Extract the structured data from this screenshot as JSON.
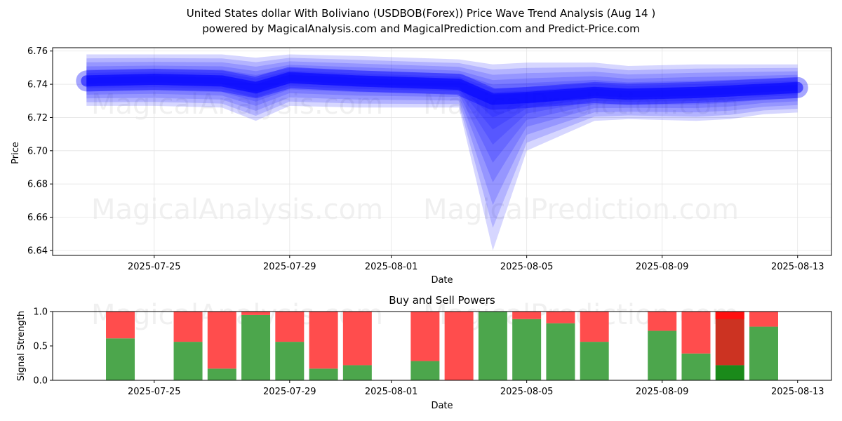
{
  "title_line1": "United States dollar With Boliviano (USDBOB(Forex)) Price Wave Trend Analysis (Aug 14 )",
  "title_line2": "powered by MagicalAnalysis.com and MagicalPrediction.com and Predict-Price.com",
  "watermarks": [
    "MagicalAnalysis.com",
    "MagicalPrediction.com"
  ],
  "colors": {
    "wave": "#0000ff",
    "buy": "#4ca64c",
    "sell": "#ff4d4d",
    "buy_strong": "#1a8a1a",
    "sell_strong": "#cc3322",
    "sell_top": "#ff1111"
  },
  "chart_data": [
    {
      "type": "area",
      "title": "",
      "xlabel": "Date",
      "ylabel": "Price",
      "ylim": [
        6.637,
        6.762
      ],
      "xlim": [
        "2025-07-22",
        "2025-08-14"
      ],
      "grid": true,
      "yticks": [
        6.64,
        6.66,
        6.68,
        6.7,
        6.72,
        6.74,
        6.76
      ],
      "ytick_labels": [
        "6.64",
        "6.66",
        "6.68",
        "6.70",
        "6.72",
        "6.74",
        "6.76"
      ],
      "xticks": [
        "2025-07-25",
        "2025-07-29",
        "2025-08-01",
        "2025-08-05",
        "2025-08-09",
        "2025-08-13"
      ],
      "series": [
        {
          "name": "wave center",
          "x": [
            "2025-07-23",
            "2025-07-25",
            "2025-07-27",
            "2025-07-28",
            "2025-07-29",
            "2025-07-31",
            "2025-08-03",
            "2025-08-04",
            "2025-08-05",
            "2025-08-07",
            "2025-08-08",
            "2025-08-10",
            "2025-08-11",
            "2025-08-12",
            "2025-08-13"
          ],
          "values": [
            6.742,
            6.743,
            6.742,
            6.738,
            6.744,
            6.742,
            6.74,
            6.731,
            6.732,
            6.735,
            6.734,
            6.735,
            6.736,
            6.737,
            6.738
          ]
        },
        {
          "name": "wave upper",
          "x": [
            "2025-07-23",
            "2025-07-25",
            "2025-07-27",
            "2025-07-28",
            "2025-07-29",
            "2025-07-31",
            "2025-08-03",
            "2025-08-04",
            "2025-08-05",
            "2025-08-07",
            "2025-08-08",
            "2025-08-10",
            "2025-08-11",
            "2025-08-12",
            "2025-08-13"
          ],
          "values": [
            6.758,
            6.758,
            6.758,
            6.756,
            6.758,
            6.757,
            6.755,
            6.752,
            6.753,
            6.753,
            6.751,
            6.752,
            6.752,
            6.752,
            6.752
          ]
        },
        {
          "name": "wave lower",
          "x": [
            "2025-07-23",
            "2025-07-25",
            "2025-07-27",
            "2025-07-28",
            "2025-07-29",
            "2025-07-31",
            "2025-08-03",
            "2025-08-04",
            "2025-08-05",
            "2025-08-07",
            "2025-08-08",
            "2025-08-10",
            "2025-08-11",
            "2025-08-12",
            "2025-08-13"
          ],
          "values": [
            6.727,
            6.727,
            6.726,
            6.718,
            6.727,
            6.726,
            6.726,
            6.64,
            6.7,
            6.718,
            6.719,
            6.718,
            6.719,
            6.722,
            6.723
          ]
        }
      ]
    },
    {
      "type": "bar",
      "title": "Buy and Sell Powers",
      "xlabel": "Date",
      "ylabel": "Signal Strength",
      "ylim": [
        0,
        1.0
      ],
      "yticks": [
        0.0,
        0.5,
        1.0
      ],
      "ytick_labels": [
        "0.0",
        "0.5",
        "1.0"
      ],
      "xticks": [
        "2025-07-25",
        "2025-07-29",
        "2025-08-01",
        "2025-08-05",
        "2025-08-09",
        "2025-08-13"
      ],
      "categories": [
        "2025-07-24",
        "2025-07-26",
        "2025-07-27",
        "2025-07-28",
        "2025-07-29",
        "2025-07-30",
        "2025-07-31",
        "2025-08-02",
        "2025-08-03",
        "2025-08-04",
        "2025-08-05",
        "2025-08-06",
        "2025-08-07",
        "2025-08-09",
        "2025-08-10",
        "2025-08-11",
        "2025-08-12"
      ],
      "series": [
        {
          "name": "Buy",
          "values": [
            0.61,
            0.56,
            0.17,
            0.95,
            0.56,
            0.17,
            0.22,
            0.28,
            0.0,
            1.0,
            0.89,
            0.83,
            0.56,
            0.72,
            0.39,
            0.22,
            0.78
          ]
        },
        {
          "name": "Sell",
          "values": [
            0.39,
            0.44,
            0.83,
            0.05,
            0.44,
            0.83,
            0.78,
            0.72,
            1.0,
            0.0,
            0.11,
            0.17,
            0.44,
            0.28,
            0.61,
            0.78,
            0.22
          ]
        }
      ]
    }
  ]
}
